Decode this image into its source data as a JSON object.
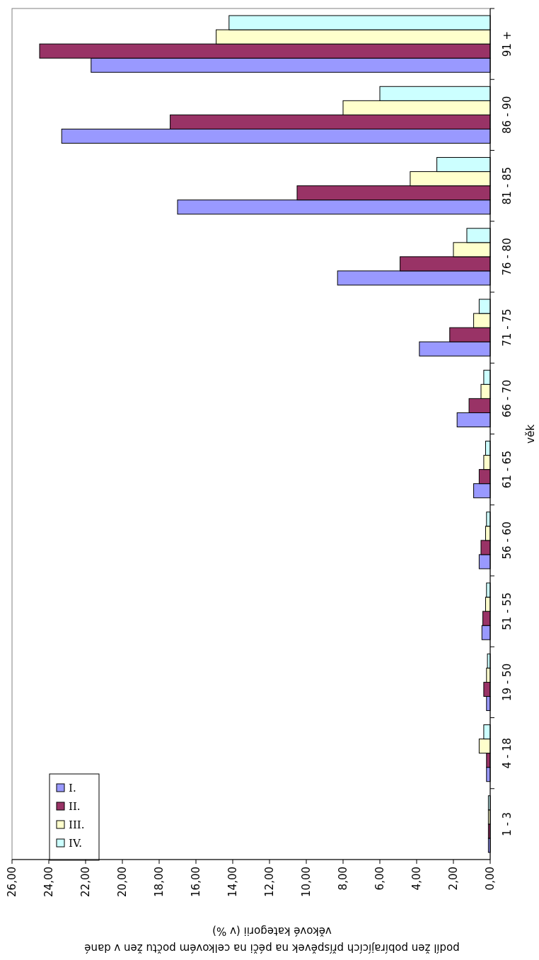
{
  "chart_data": {
    "type": "bar",
    "orientation": "horizontal",
    "ylabel": "věk",
    "xlabel": "podíl žen pobírajících příspěvek na péči na celkovém počtu žen v dané věkové kategorii (v %)",
    "categories": [
      "91 +",
      "86 - 90",
      "81 - 85",
      "76 - 80",
      "71 - 75",
      "66 - 70",
      "61 - 65",
      "56 - 60",
      "51 - 55",
      "19 - 50",
      "4 - 18",
      "1 - 3"
    ],
    "series": [
      {
        "name": "I.",
        "color": "#9999ff",
        "values": [
          21.7,
          23.3,
          17.0,
          8.3,
          3.85,
          1.8,
          0.9,
          0.6,
          0.45,
          0.2,
          0.2,
          0.1
        ]
      },
      {
        "name": "II.",
        "color": "#993366",
        "values": [
          24.5,
          17.4,
          10.5,
          4.9,
          2.2,
          1.15,
          0.6,
          0.5,
          0.4,
          0.35,
          0.2,
          0.1
        ]
      },
      {
        "name": "III.",
        "color": "#ffffcc",
        "values": [
          14.9,
          8.0,
          4.35,
          2.0,
          0.9,
          0.5,
          0.35,
          0.25,
          0.25,
          0.2,
          0.6,
          0.1
        ]
      },
      {
        "name": "IV.",
        "color": "#ccffff",
        "values": [
          14.2,
          6.0,
          2.9,
          1.27,
          0.6,
          0.35,
          0.25,
          0.2,
          0.2,
          0.15,
          0.35,
          0.1
        ]
      }
    ],
    "xlim": [
      26,
      0
    ],
    "xticks": [
      {
        "value": 0,
        "label": "0,00"
      },
      {
        "value": 2,
        "label": "2,00"
      },
      {
        "value": 4,
        "label": "4,00"
      },
      {
        "value": 6,
        "label": "6,00"
      },
      {
        "value": 8,
        "label": "8,00"
      },
      {
        "value": 10,
        "label": "10,00"
      },
      {
        "value": 12,
        "label": "12,00"
      },
      {
        "value": 14,
        "label": "14,00"
      },
      {
        "value": 16,
        "label": "16,00"
      },
      {
        "value": 18,
        "label": "18,00"
      },
      {
        "value": 20,
        "label": "20,00"
      },
      {
        "value": 22,
        "label": "22,00"
      },
      {
        "value": 24,
        "label": "24,00"
      },
      {
        "value": 26,
        "label": "26,00"
      }
    ],
    "grid": false,
    "legend": "bottom left"
  }
}
